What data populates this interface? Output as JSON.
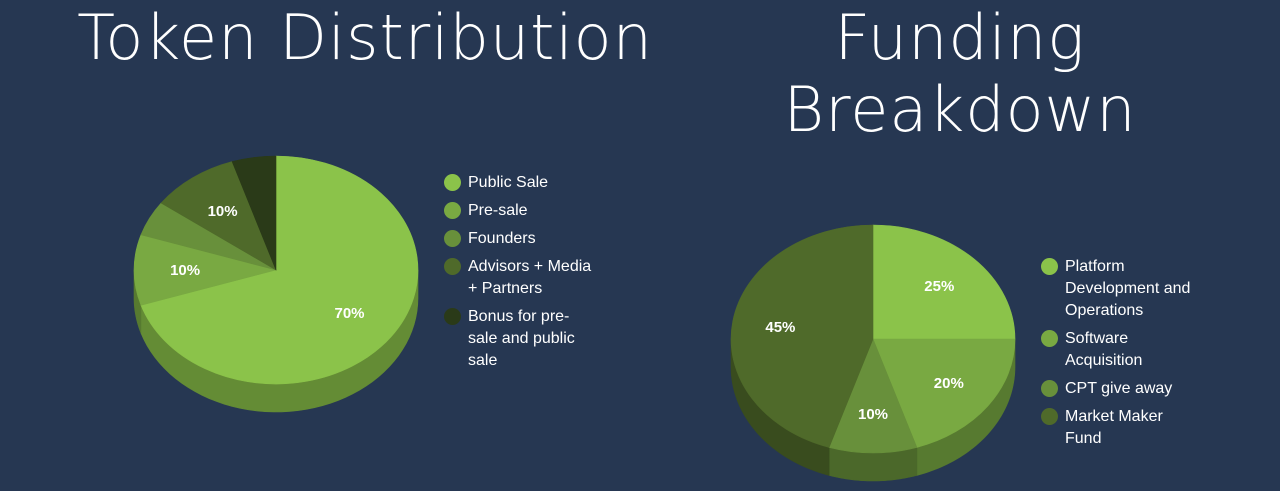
{
  "chart_data": [
    {
      "type": "pie",
      "title": "Token Distribution",
      "legend_position": "right",
      "slices": [
        {
          "label": "Public Sale",
          "value": 70,
          "data_label": "70%",
          "color": "#8bc34a"
        },
        {
          "label": "Pre-sale",
          "value": 10,
          "data_label": "10%",
          "color": "#79a942"
        },
        {
          "label": "Founders",
          "value": 5,
          "data_label": "",
          "color": "#68903b"
        },
        {
          "label": "Advisors + Media + Partners",
          "value": 10,
          "data_label": "10%",
          "color": "#4f6a2a"
        },
        {
          "label": "Bonus for pre-sale and public sale",
          "value": 5,
          "data_label": "",
          "color": "#2a3a18"
        }
      ]
    },
    {
      "type": "pie",
      "title": [
        "Funding",
        "Breakdown"
      ],
      "legend_position": "right",
      "slices": [
        {
          "label": "Platform Development and Operations",
          "value": 25,
          "data_label": "25%",
          "color": "#8bc34a"
        },
        {
          "label": "Software Acquisition",
          "value": 20,
          "data_label": "20%",
          "color": "#79a942"
        },
        {
          "label": "CPT give away",
          "value": 10,
          "data_label": "10%",
          "color": "#68903b"
        },
        {
          "label": "Market Maker Fund",
          "value": 45,
          "data_label": "45%",
          "color": "#4f6a2a"
        }
      ]
    }
  ]
}
